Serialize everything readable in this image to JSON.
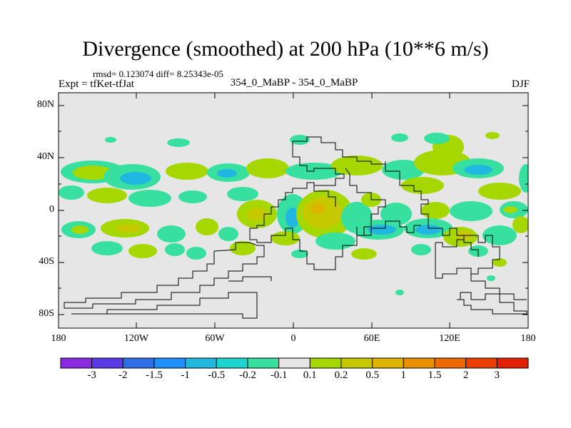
{
  "title": "Divergence (smoothed) at 200 hPa (10**6 m/s)",
  "stats": "rmsd= 0.123074 diff= 8.25343e-05",
  "experiment": "Expt = tfKet-tfJat",
  "center_label": "354_0_MaBP - 354_0_MaBP",
  "season": "DJF",
  "map": {
    "background": "#e6e6e6",
    "x_ticks": [
      "180",
      "120W",
      "60W",
      "0",
      "60E",
      "120E",
      "180"
    ],
    "y_ticks": [
      "80N",
      "40N",
      "0",
      "40S",
      "80S"
    ]
  },
  "colorbar": {
    "labels": [
      "-3",
      "-2",
      "-1.5",
      "-1",
      "-0.5",
      "-0.2",
      "-0.1",
      "0.1",
      "0.2",
      "0.5",
      "1",
      "1.5",
      "2",
      "3"
    ],
    "colors": [
      "#8a2be2",
      "#5a3ae6",
      "#2f6fe6",
      "#1e90ff",
      "#22b7e0",
      "#1fd3cf",
      "#38e0a0",
      "#e6e6e6",
      "#a6d800",
      "#c6c800",
      "#ddb400",
      "#e89000",
      "#ee6a00",
      "#e84000",
      "#e02000"
    ]
  }
}
